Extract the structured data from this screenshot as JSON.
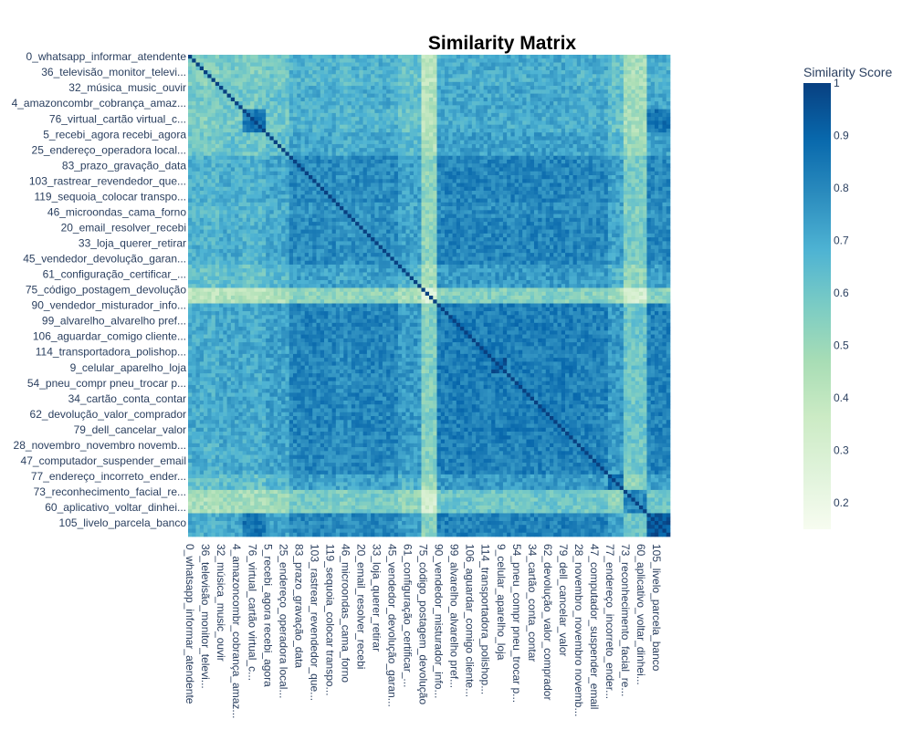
{
  "chart_data": {
    "type": "heatmap",
    "title": "Similarity Matrix",
    "colorbar": {
      "title": "Similarity Score",
      "ticks": [
        0.2,
        0.3,
        0.4,
        0.5,
        0.6,
        0.7,
        0.8,
        0.9,
        1
      ],
      "tick_labels": [
        "0.2",
        "0.3",
        "0.4",
        "0.5",
        "0.6",
        "0.7",
        "0.8",
        "0.9",
        "1"
      ],
      "range": [
        0.15,
        1.0
      ]
    },
    "colorscale": [
      [
        0.0,
        "#f7fcf0"
      ],
      [
        0.125,
        "#e0f3db"
      ],
      [
        0.25,
        "#ccebc5"
      ],
      [
        0.375,
        "#a8ddb5"
      ],
      [
        0.5,
        "#7bccc4"
      ],
      [
        0.625,
        "#4eb3d3"
      ],
      [
        0.75,
        "#2b8cbe"
      ],
      [
        0.875,
        "#0868ac"
      ],
      [
        1.0,
        "#084081"
      ]
    ],
    "tick_labels": [
      "0_whatsapp_informar_atendente",
      "36_televisão_monitor_televi...",
      "32_música_music_ouvir",
      "4_amazoncombr_cobrança_amaz...",
      "76_virtual_cartão virtual_c...",
      "5_recebi_agora recebi_agora",
      "25_endereço_operadora local...",
      "83_prazo_gravação_data",
      "103_rastrear_revendedor_que...",
      "119_sequoia_colocar transpo...",
      "46_microondas_cama_forno",
      "20_email_resolver_recebi",
      "33_loja_querer_retirar",
      "45_vendedor_devolução_garan...",
      "61_configuração_certificar_...",
      "75_código_postagem_devolução",
      "90_vendedor_misturador_info...",
      "99_alvarelho_alvarelho pref...",
      "106_aguardar_comigo cliente...",
      "114_transportadora_polishop...",
      "9_celular_aparelho_loja",
      "54_pneu_compr pneu_trocar p...",
      "34_cartão_conta_contar",
      "62_devolução_valor_comprador",
      "79_dell_cancelar_valor",
      "28_novembro_novembro novemb...",
      "47_computador_suspender_email",
      "77_endereço_incorreto_ender...",
      "73_reconhecimento_facial_re...",
      "60_aplicativo_voltar_dinhei...",
      "105_livelo_parcela_banco"
    ],
    "n_topics": 124,
    "label_every": 4,
    "groups": [
      {
        "start": 0,
        "end": 4,
        "mean": 0.52
      },
      {
        "start": 4,
        "end": 8,
        "mean": 0.5
      },
      {
        "start": 8,
        "end": 14,
        "mean": 0.55
      },
      {
        "start": 14,
        "end": 20,
        "mean": 0.52
      },
      {
        "start": 20,
        "end": 26,
        "mean": 0.58
      },
      {
        "start": 26,
        "end": 38,
        "mean": 0.74
      },
      {
        "start": 38,
        "end": 42,
        "mean": 0.7
      },
      {
        "start": 42,
        "end": 54,
        "mean": 0.74
      },
      {
        "start": 54,
        "end": 60,
        "mean": 0.62
      },
      {
        "start": 60,
        "end": 64,
        "mean": 0.22
      },
      {
        "start": 64,
        "end": 82,
        "mean": 0.78
      },
      {
        "start": 82,
        "end": 100,
        "mean": 0.78
      },
      {
        "start": 100,
        "end": 108,
        "mean": 0.76
      },
      {
        "start": 108,
        "end": 112,
        "mean": 0.62
      },
      {
        "start": 112,
        "end": 118,
        "mean": 0.32
      },
      {
        "start": 118,
        "end": 124,
        "mean": 0.76
      }
    ],
    "blocks": [
      {
        "rows": [
          14,
          20
        ],
        "cols": [
          14,
          20
        ],
        "value": 0.85
      },
      {
        "rows": [
          78,
          82
        ],
        "cols": [
          78,
          82
        ],
        "value": 0.92
      },
      {
        "rows": [
          108,
          112
        ],
        "cols": [
          108,
          112
        ],
        "value": 0.85
      },
      {
        "rows": [
          112,
          118
        ],
        "cols": [
          112,
          118
        ],
        "value": 0.8
      },
      {
        "rows": [
          118,
          124
        ],
        "cols": [
          118,
          124
        ],
        "value": 0.93
      },
      {
        "rows": [
          14,
          20
        ],
        "cols": [
          118,
          124
        ],
        "value": 0.85
      },
      {
        "rows": [
          118,
          124
        ],
        "cols": [
          14,
          20
        ],
        "value": 0.85
      }
    ],
    "diagonal": 1.0
  }
}
